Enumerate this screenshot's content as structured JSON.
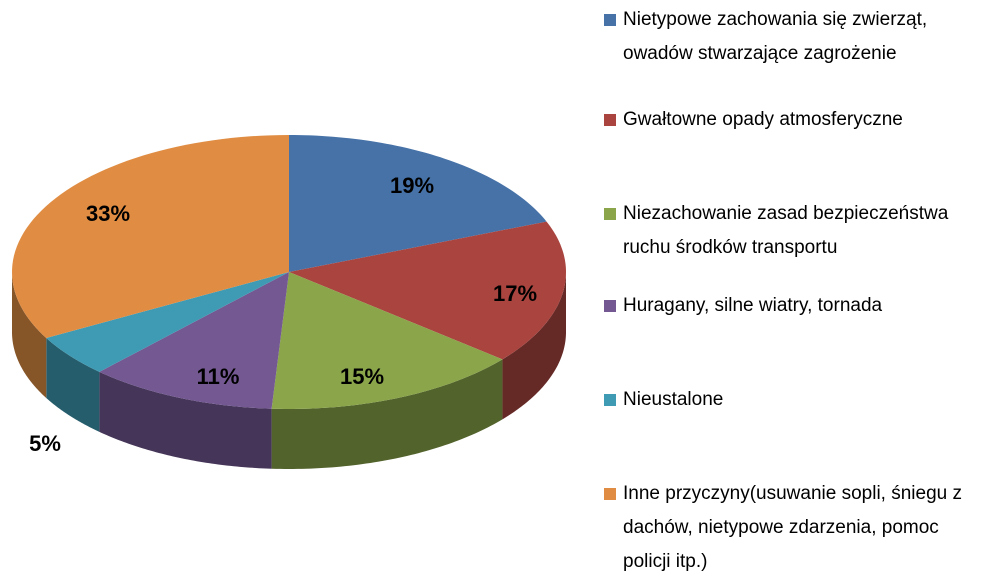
{
  "chart_data": {
    "type": "pie",
    "categories": [
      "Nietypowe zachowania się zwierząt, owadów stwarzające zagrożenie",
      "Gwałtowne opady atmosferyczne",
      "Niezachowanie zasad bezpieczeństwa ruchu środków transportu",
      "Huragany, silne wiatry, tornada",
      "Nieustalone",
      "Inne przyczyny(usuwanie sopli, śniegu z dachów, nietypowe zdarzenia, pomoc policji itp.)"
    ],
    "values": [
      19,
      17,
      15,
      11,
      5,
      33
    ],
    "value_labels": [
      "19%",
      "17%",
      "15%",
      "11%",
      "5%",
      "33%"
    ],
    "colors": [
      "#4672a8",
      "#a9443f",
      "#8aa54a",
      "#735892",
      "#3f9bb4",
      "#e08d43"
    ],
    "legend": "right"
  }
}
